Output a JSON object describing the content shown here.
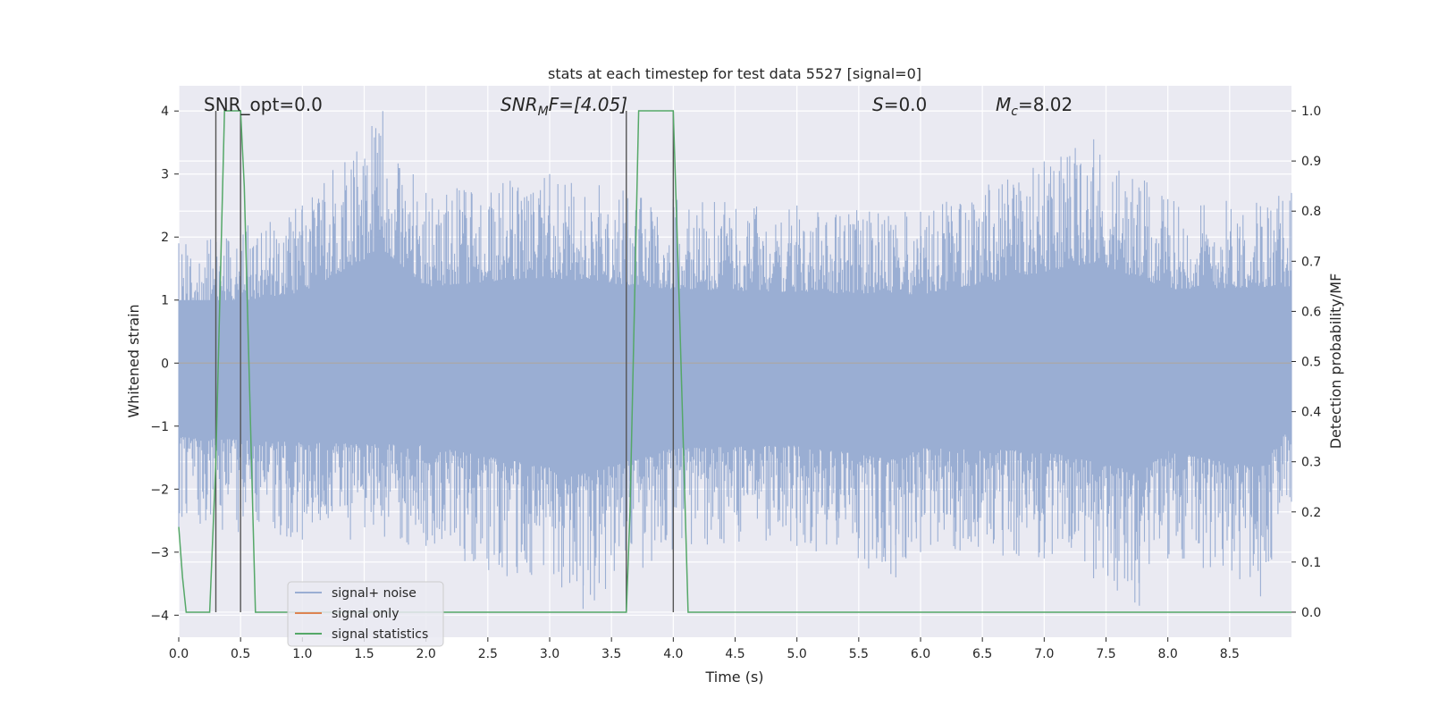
{
  "chart_data": {
    "type": "line",
    "title": "stats at each timestep for test data 5527 [signal=0]",
    "xlabel": "Time (s)",
    "ylabel": "Whitened strain",
    "y2label": "Detection probability/MF",
    "xlim": [
      0.0,
      9.0
    ],
    "ylim": [
      -4.35,
      4.4
    ],
    "y2lim": [
      -0.05,
      1.05
    ],
    "grid": true,
    "xticks": [
      0.0,
      0.5,
      1.0,
      1.5,
      2.0,
      2.5,
      3.0,
      3.5,
      4.0,
      4.5,
      5.0,
      5.5,
      6.0,
      6.5,
      7.0,
      7.5,
      8.0,
      8.5
    ],
    "xtick_labels": [
      "0.0",
      "0.5",
      "1.0",
      "1.5",
      "2.0",
      "2.5",
      "3.0",
      "3.5",
      "4.0",
      "4.5",
      "5.0",
      "5.5",
      "6.0",
      "6.5",
      "7.0",
      "7.5",
      "8.0",
      "8.5"
    ],
    "yticks": [
      -4,
      -3,
      -2,
      -1,
      0,
      1,
      2,
      3,
      4
    ],
    "ytick_labels": [
      "−4",
      "−3",
      "−2",
      "−1",
      "0",
      "1",
      "2",
      "3",
      "4"
    ],
    "y2ticks": [
      0.0,
      0.1,
      0.2,
      0.3,
      0.4,
      0.5,
      0.6,
      0.7,
      0.8,
      0.9,
      1.0
    ],
    "y2tick_labels": [
      "0.0",
      "0.1",
      "0.2",
      "0.3",
      "0.4",
      "0.5",
      "0.6",
      "0.7",
      "0.8",
      "0.9",
      "1.0"
    ],
    "legend_position": "lower-left",
    "annotations": {
      "snr_opt": "SNR_opt=0.0",
      "snr_mf_name": "SNR",
      "snr_mf_sub": "M",
      "snr_mf_rest": "F=[4.05]",
      "s_name": "S",
      "s_rest": "=0.0",
      "mc_name": "M",
      "mc_sub": "c",
      "mc_rest": "=8.02"
    },
    "series": [
      {
        "name": "signal+ noise",
        "color": "#9aaed3",
        "kind": "noise",
        "envelope_positive": [
          [
            0.0,
            1.9
          ],
          [
            1.0,
            2.5
          ],
          [
            1.65,
            4.0
          ],
          [
            2.0,
            2.7
          ],
          [
            3.0,
            3.0
          ],
          [
            4.0,
            2.6
          ],
          [
            5.0,
            2.5
          ],
          [
            6.0,
            2.4
          ],
          [
            7.0,
            3.2
          ],
          [
            7.4,
            3.55
          ],
          [
            8.0,
            2.6
          ],
          [
            9.0,
            2.7
          ]
        ],
        "envelope_negative": [
          [
            0.0,
            -2.6
          ],
          [
            1.0,
            -2.8
          ],
          [
            2.0,
            -2.9
          ],
          [
            3.27,
            -3.9
          ],
          [
            4.0,
            -3.0
          ],
          [
            5.0,
            -2.9
          ],
          [
            5.8,
            -3.4
          ],
          [
            6.0,
            -3.0
          ],
          [
            7.0,
            -3.1
          ],
          [
            7.77,
            -3.85
          ],
          [
            8.0,
            -3.1
          ],
          [
            8.75,
            -3.7
          ],
          [
            9.0,
            -2.2
          ]
        ]
      },
      {
        "name": "signal only",
        "color": "#dd8452",
        "x": [
          0.0,
          9.0
        ],
        "y": [
          0.0,
          0.0
        ]
      },
      {
        "name": "signal statistics",
        "color": "#55a868",
        "axis": "right",
        "x": [
          0.0,
          0.03,
          0.06,
          0.25,
          0.3,
          0.37,
          0.5,
          0.53,
          0.62,
          3.62,
          3.65,
          3.72,
          4.0,
          4.05,
          4.12,
          9.0
        ],
        "y": [
          0.17,
          0.07,
          0.0,
          0.0,
          0.3,
          1.0,
          1.0,
          0.85,
          0.0,
          0.0,
          0.2,
          1.0,
          1.0,
          0.6,
          0.0,
          0.0
        ]
      }
    ],
    "vertical_lines": [
      0.3,
      0.5,
      3.62,
      4.0
    ],
    "vertical_line_color": "#555555"
  }
}
